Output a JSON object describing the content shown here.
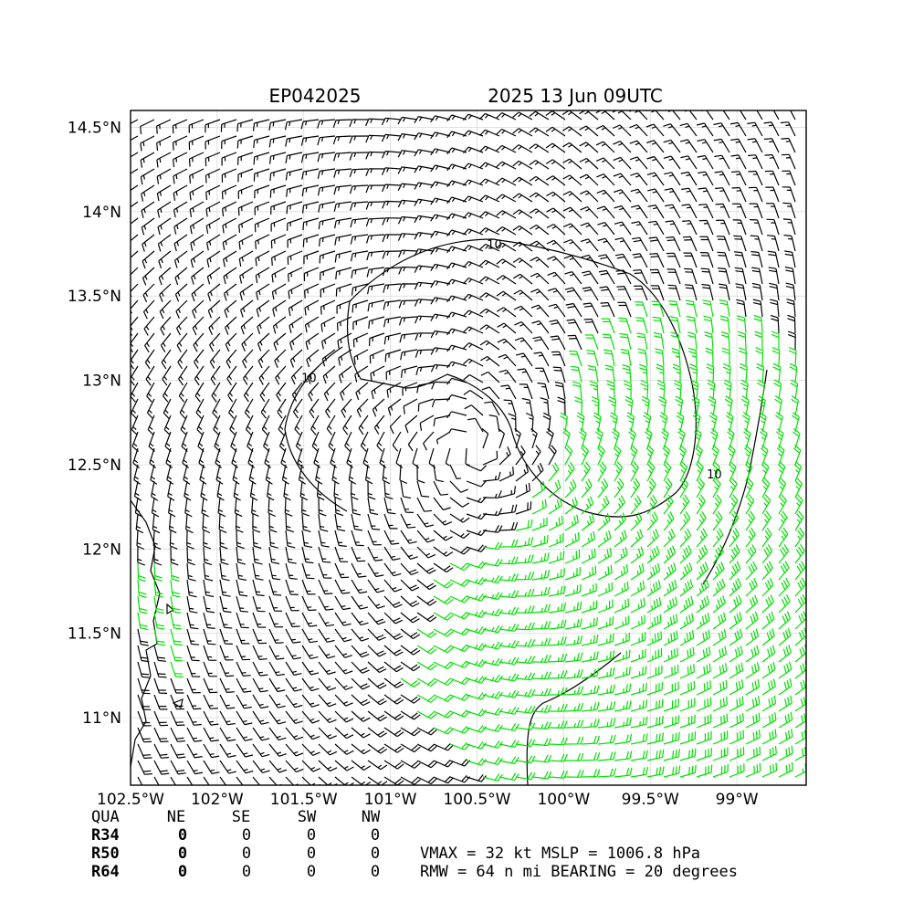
{
  "figure": {
    "storm_id": "EP042025",
    "datetime": "2025 13 Jun 09UTC"
  },
  "map": {
    "lon_range": [
      -102.5,
      -98.6
    ],
    "lat_range": [
      10.6,
      14.6
    ],
    "lon_ticks": [
      {
        "value": -102.5,
        "label": "102.5°W"
      },
      {
        "value": -102.0,
        "label": "102°W"
      },
      {
        "value": -101.5,
        "label": "101.5°W"
      },
      {
        "value": -101.0,
        "label": "101°W"
      },
      {
        "value": -100.5,
        "label": "100.5°W"
      },
      {
        "value": -100.0,
        "label": "100°W"
      },
      {
        "value": -99.5,
        "label": "99.5°W"
      },
      {
        "value": -99.0,
        "label": "99°W"
      }
    ],
    "lat_ticks": [
      {
        "value": 14.5,
        "label": "14.5°N"
      },
      {
        "value": 14.0,
        "label": "14°N"
      },
      {
        "value": 13.5,
        "label": "13.5°N"
      },
      {
        "value": 13.0,
        "label": "13°N"
      },
      {
        "value": 12.5,
        "label": "12.5°N"
      },
      {
        "value": 12.0,
        "label": "12°N"
      },
      {
        "value": 11.5,
        "label": "11.5°N"
      },
      {
        "value": 11.0,
        "label": "11°N"
      }
    ],
    "grid": true,
    "vortex_center": {
      "lon": -100.55,
      "lat": 12.6
    },
    "contour_labels": [
      {
        "text": "10",
        "lon": -100.4,
        "lat": 13.78
      },
      {
        "text": "10",
        "lon": -101.47,
        "lat": 12.99
      },
      {
        "text": "10",
        "lon": -99.13,
        "lat": 12.42
      }
    ],
    "barb_colors": {
      "normal": "#000000",
      "strong": "#00e000"
    },
    "strong_threshold_kt": 20
  },
  "wind_radii": {
    "headers": [
      "QUA",
      "NE",
      "SE",
      "SW",
      "NW"
    ],
    "rows": [
      {
        "label": "R34",
        "values": [
          "0",
          "0",
          "0",
          "0"
        ]
      },
      {
        "label": "R50",
        "values": [
          "0",
          "0",
          "0",
          "0"
        ]
      },
      {
        "label": "R64",
        "values": [
          "0",
          "0",
          "0",
          "0"
        ]
      }
    ]
  },
  "summary": {
    "line1": "VMAX =  32 kt MSLP = 1006.8 hPa",
    "line2": "RMW =  64 n mi BEARING =  20 degrees"
  }
}
